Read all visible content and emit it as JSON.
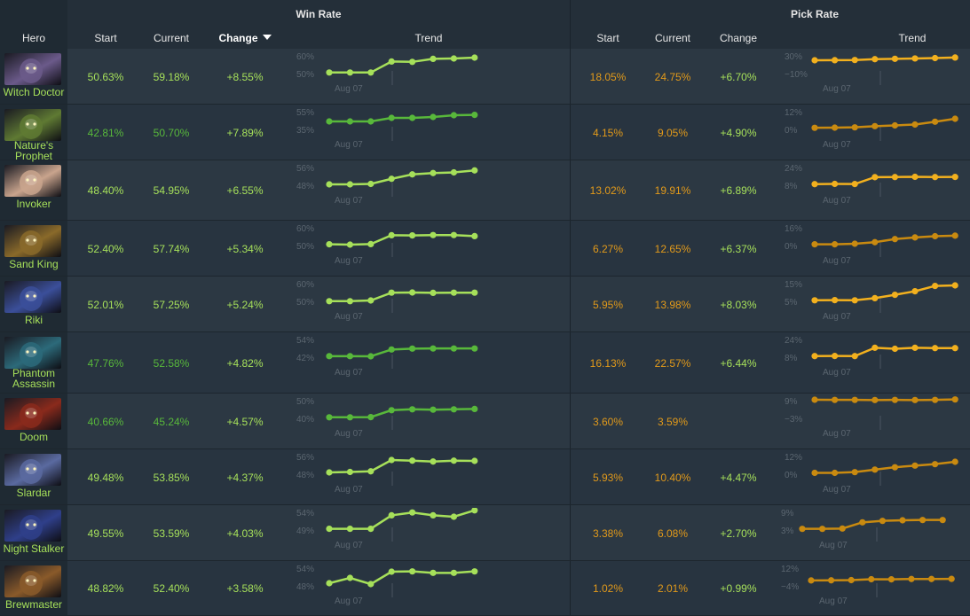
{
  "headers": {
    "win_rate": "Win Rate",
    "pick_rate": "Pick Rate",
    "hero": "Hero",
    "start": "Start",
    "current": "Current",
    "change": "Change",
    "trend": "Trend"
  },
  "colors": {
    "win_dark": "#58b83b",
    "win_light": "#a6e05a",
    "pick_dark": "#c98a10",
    "pick_light": "#f2b01e"
  },
  "rows": [
    {
      "hero": "Witch Doctor",
      "name_lines": [
        "Witch Doctor"
      ],
      "wr_start": "50.63%",
      "wr_current": "59.18%",
      "wr_change": "+8.55%",
      "wr_hi": "60%",
      "wr_lo": "50%",
      "wr_date": "Aug 07",
      "wr_tone": "light",
      "wr_pts": [
        50.1,
        50.1,
        50.1,
        56.3,
        56.1,
        57.8,
        58.0,
        58.5
      ],
      "pr_start": "18.05%",
      "pr_current": "24.75%",
      "pr_change": "+6.70%",
      "pr_hi": "30%",
      "pr_lo": "−10%",
      "pr_date": "Aug 07",
      "pr_tone": "light",
      "pr_pts": [
        18.0,
        18.2,
        18.6,
        20.5,
        21.3,
        22.1,
        23.0,
        24.2
      ],
      "hue": "#6b5a8a"
    },
    {
      "hero": "Nature's Prophet",
      "name_lines": [
        "Nature's",
        "Prophet"
      ],
      "wr_start": "42.81%",
      "wr_current": "50.70%",
      "wr_change": "+7.89%",
      "wr_hi": "55%",
      "wr_lo": "35%",
      "wr_date": "Aug 07",
      "wr_tone": "dark",
      "wr_pts": [
        43,
        43,
        43,
        47,
        47,
        48,
        50,
        50.4
      ],
      "pr_start": "4.15%",
      "pr_current": "9.05%",
      "pr_change": "+4.90%",
      "pr_hi": "12%",
      "pr_lo": "0%",
      "pr_date": "Aug 07",
      "pr_tone": "dark",
      "pr_pts": [
        0.5,
        0.6,
        0.8,
        1.6,
        2.1,
        2.7,
        4.6,
        6.6
      ],
      "hue": "#5f7a33"
    },
    {
      "hero": "Invoker",
      "name_lines": [
        "Invoker"
      ],
      "wr_start": "48.40%",
      "wr_current": "54.95%",
      "wr_change": "+6.55%",
      "wr_hi": "56%",
      "wr_lo": "48%",
      "wr_date": "Aug 07",
      "wr_tone": "light",
      "wr_pts": [
        48,
        48,
        48.2,
        50.5,
        52.5,
        53.1,
        53.4,
        54.3
      ],
      "pr_start": "13.02%",
      "pr_current": "19.91%",
      "pr_change": "+6.89%",
      "pr_hi": "24%",
      "pr_lo": "8%",
      "pr_date": "Aug 07",
      "pr_tone": "light",
      "pr_pts": [
        8.2,
        8.4,
        8.3,
        14.5,
        14.6,
        14.8,
        14.6,
        14.7
      ],
      "hue": "#c9a48d"
    },
    {
      "hero": "Sand King",
      "name_lines": [
        "Sand King"
      ],
      "wr_start": "52.40%",
      "wr_current": "57.74%",
      "wr_change": "+5.34%",
      "wr_hi": "60%",
      "wr_lo": "50%",
      "wr_date": "Aug 07",
      "wr_tone": "light",
      "wr_pts": [
        50.2,
        50.0,
        50.3,
        55.3,
        55.2,
        55.4,
        55.4,
        54.8
      ],
      "pr_start": "6.27%",
      "pr_current": "12.65%",
      "pr_change": "+6.37%",
      "pr_hi": "16%",
      "pr_lo": "0%",
      "pr_date": "Aug 07",
      "pr_tone": "dark",
      "pr_pts": [
        0.3,
        0.3,
        0.8,
        2.2,
        5.0,
        6.5,
        7.6,
        8.1
      ],
      "hue": "#8a6a2a"
    },
    {
      "hero": "Riki",
      "name_lines": [
        "Riki"
      ],
      "wr_start": "52.01%",
      "wr_current": "57.25%",
      "wr_change": "+5.24%",
      "wr_hi": "60%",
      "wr_lo": "50%",
      "wr_date": "Aug 07",
      "wr_tone": "light",
      "wr_pts": [
        49.6,
        49.6,
        50,
        54.4,
        54.5,
        54.3,
        54.4,
        54.4
      ],
      "pr_start": "5.95%",
      "pr_current": "13.98%",
      "pr_change": "+8.03%",
      "pr_hi": "15%",
      "pr_lo": "5%",
      "pr_date": "Aug 07",
      "pr_tone": "light",
      "pr_pts": [
        5.1,
        5.2,
        5.1,
        6.3,
        8.2,
        10.2,
        13.2,
        13.5
      ],
      "hue": "#3b4f9a"
    },
    {
      "hero": "Phantom Assassin",
      "name_lines": [
        "Phantom",
        "Assassin"
      ],
      "wr_start": "47.76%",
      "wr_current": "52.58%",
      "wr_change": "+4.82%",
      "wr_hi": "54%",
      "wr_lo": "42%",
      "wr_date": "Aug 07",
      "wr_tone": "dark",
      "wr_pts": [
        42.1,
        42.1,
        42,
        46.6,
        47.2,
        47.3,
        47.3,
        47.3
      ],
      "pr_start": "16.13%",
      "pr_current": "22.57%",
      "pr_change": "+6.44%",
      "pr_hi": "24%",
      "pr_lo": "8%",
      "pr_date": "Aug 07",
      "pr_tone": "light",
      "pr_pts": [
        8.2,
        8.3,
        8.2,
        15.7,
        14.8,
        15.7,
        15.4,
        15.4
      ],
      "hue": "#2c6a7a"
    },
    {
      "hero": "Doom",
      "name_lines": [
        "Doom"
      ],
      "wr_start": "40.66%",
      "wr_current": "45.24%",
      "wr_change": "+4.57%",
      "wr_hi": "50%",
      "wr_lo": "40%",
      "wr_date": "Aug 07",
      "wr_tone": "dark",
      "wr_pts": [
        40.1,
        40.1,
        40.2,
        44.1,
        44.6,
        44.4,
        44.6,
        44.8
      ],
      "pr_start": "3.60%",
      "pr_current": "3.59%",
      "pr_change": "",
      "pr_hi": "9%",
      "pr_lo": "−3%",
      "pr_date": "Aug 07",
      "pr_tone": "dark",
      "pr_pts": [
        9.0,
        8.9,
        8.9,
        8.8,
        8.9,
        8.8,
        8.9,
        9.2
      ],
      "hue": "#8a2a1c"
    },
    {
      "hero": "Slardar",
      "name_lines": [
        "Slardar"
      ],
      "wr_start": "49.48%",
      "wr_current": "53.85%",
      "wr_change": "+4.37%",
      "wr_hi": "56%",
      "wr_lo": "48%",
      "wr_date": "Aug 07",
      "wr_tone": "light",
      "wr_pts": [
        48.4,
        48.6,
        48.9,
        54,
        53.7,
        53.3,
        53.7,
        53.6
      ],
      "pr_start": "5.93%",
      "pr_current": "10.40%",
      "pr_change": "+4.47%",
      "pr_hi": "12%",
      "pr_lo": "0%",
      "pr_date": "Aug 07",
      "pr_tone": "dark",
      "pr_pts": [
        0.3,
        0.3,
        0.8,
        2.5,
        4.1,
        5.2,
        6.2,
        7.8
      ],
      "hue": "#5a6aa0"
    },
    {
      "hero": "Night Stalker",
      "name_lines": [
        "Night Stalker"
      ],
      "wr_start": "49.55%",
      "wr_current": "53.59%",
      "wr_change": "+4.03%",
      "wr_hi": "54%",
      "wr_lo": "49%",
      "wr_date": "Aug 07",
      "wr_tone": "light",
      "wr_pts": [
        49.1,
        49.1,
        49.1,
        52.9,
        53.7,
        52.9,
        52.5,
        54.3
      ],
      "pr_start": "3.38%",
      "pr_current": "6.08%",
      "pr_change": "+2.70%",
      "pr_hi": "9%",
      "pr_lo": "3%",
      "pr_date": "Aug 07",
      "pr_tone": "dark",
      "pr_pts": [
        3.1,
        3.1,
        3.2,
        5.3,
        5.8,
        6.0,
        6.1,
        6.1
      ],
      "hue": "#2f3f8a"
    },
    {
      "hero": "Brewmaster",
      "name_lines": [
        "Brewmaster"
      ],
      "wr_start": "48.82%",
      "wr_current": "52.40%",
      "wr_change": "+3.58%",
      "wr_hi": "54%",
      "wr_lo": "48%",
      "wr_date": "Aug 07",
      "wr_tone": "light",
      "wr_pts": [
        48.6,
        50.4,
        48.3,
        52.5,
        52.6,
        52.1,
        52.1,
        52.6
      ],
      "pr_start": "1.02%",
      "pr_current": "2.01%",
      "pr_change": "+0.99%",
      "pr_hi": "12%",
      "pr_lo": "−4%",
      "pr_date": "Aug 07",
      "pr_tone": "dark",
      "pr_pts": [
        0.1,
        0.2,
        0.4,
        1.2,
        1.1,
        1.4,
        1.4,
        1.5
      ],
      "hue": "#8a5a2a"
    }
  ]
}
